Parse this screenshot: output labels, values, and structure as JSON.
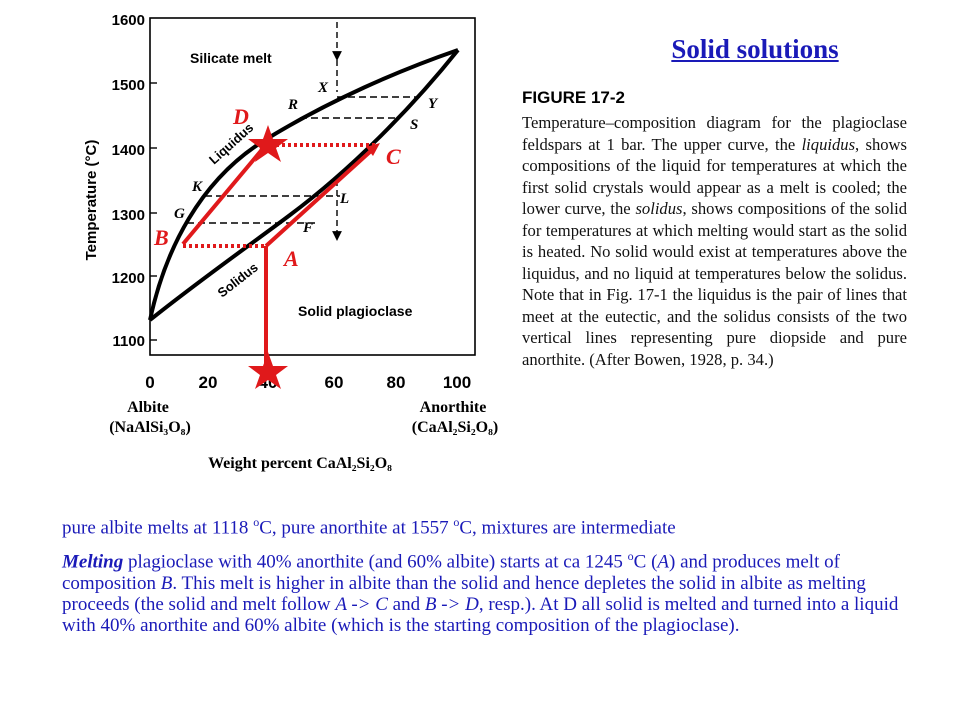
{
  "title": "Solid solutions",
  "diagram": {
    "ylabel": "Temperature (°C)",
    "y_ticks": [
      "1600",
      "1500",
      "1400",
      "1300",
      "1200",
      "1100"
    ],
    "x_ticks": [
      "0",
      "20",
      "40",
      "60",
      "80",
      "100"
    ],
    "left_end_label_1": "Albite",
    "left_end_label_2": "(NaAlSi₃O₈)",
    "right_end_label_1": "Anorthite",
    "right_end_label_2": "(CaAl₂Si₂O₈)",
    "xlabel": "Weight percent CaAl₂Si₂O₈",
    "region_melt": "Silicate melt",
    "region_solid": "Solid plagioclase",
    "curve_liquidus": "Liquidus",
    "curve_solidus": "Solidus",
    "point_labels": [
      "X",
      "Y",
      "R",
      "S",
      "K",
      "L",
      "G",
      "F"
    ],
    "markers": {
      "A": "A",
      "B": "B",
      "C": "C",
      "D": "D"
    },
    "colors": {
      "arrow": "#e0191b",
      "marker_text": "#e0191b",
      "frame": "#000000"
    }
  },
  "caption": {
    "label": "FIGURE 17-2",
    "text_parts": [
      "Temperature–composition diagram for the plagioclase feldspars at 1 bar. The upper curve, the ",
      "liquidus",
      ", shows compositions of the liquid for temperatures at which the first solid crystals would appear as a melt is cooled; the lower curve, the ",
      "solidus",
      ", shows compositions of the solid for temperatures at which melting would start as the solid is heated. No solid would exist at temperatures above the liquidus, and no liquid at temperatures below the solidus. Note that in Fig. 17-1 the liquidus is the pair of lines that meet at the eutectic, and the solidus consists of the two vertical lines representing pure diopside and pure anorthite. (After Bowen, 1928, p. 34.)"
    ]
  },
  "body": {
    "para1": [
      "pure albite melts at 1118 ",
      "o",
      "C, pure anorthite at 1557 ",
      "o",
      "C, mixtures are intermediate"
    ],
    "para2": [
      "Melting",
      " plagioclase with 40% anorthite (and 60% albite) starts at ca 1245 ",
      "o",
      "C (",
      "A",
      ") and produces melt of composition ",
      "B",
      ". This melt is higher in albite than the solid and hence depletes the solid in albite as melting proceeds (the solid and melt follow ",
      "A -> C",
      " and ",
      "B -> D",
      ", resp.). At D all solid is melted and turned into a liquid with 40% anorthite and 60% albite (which is the starting composition of the plagioclase)."
    ]
  }
}
